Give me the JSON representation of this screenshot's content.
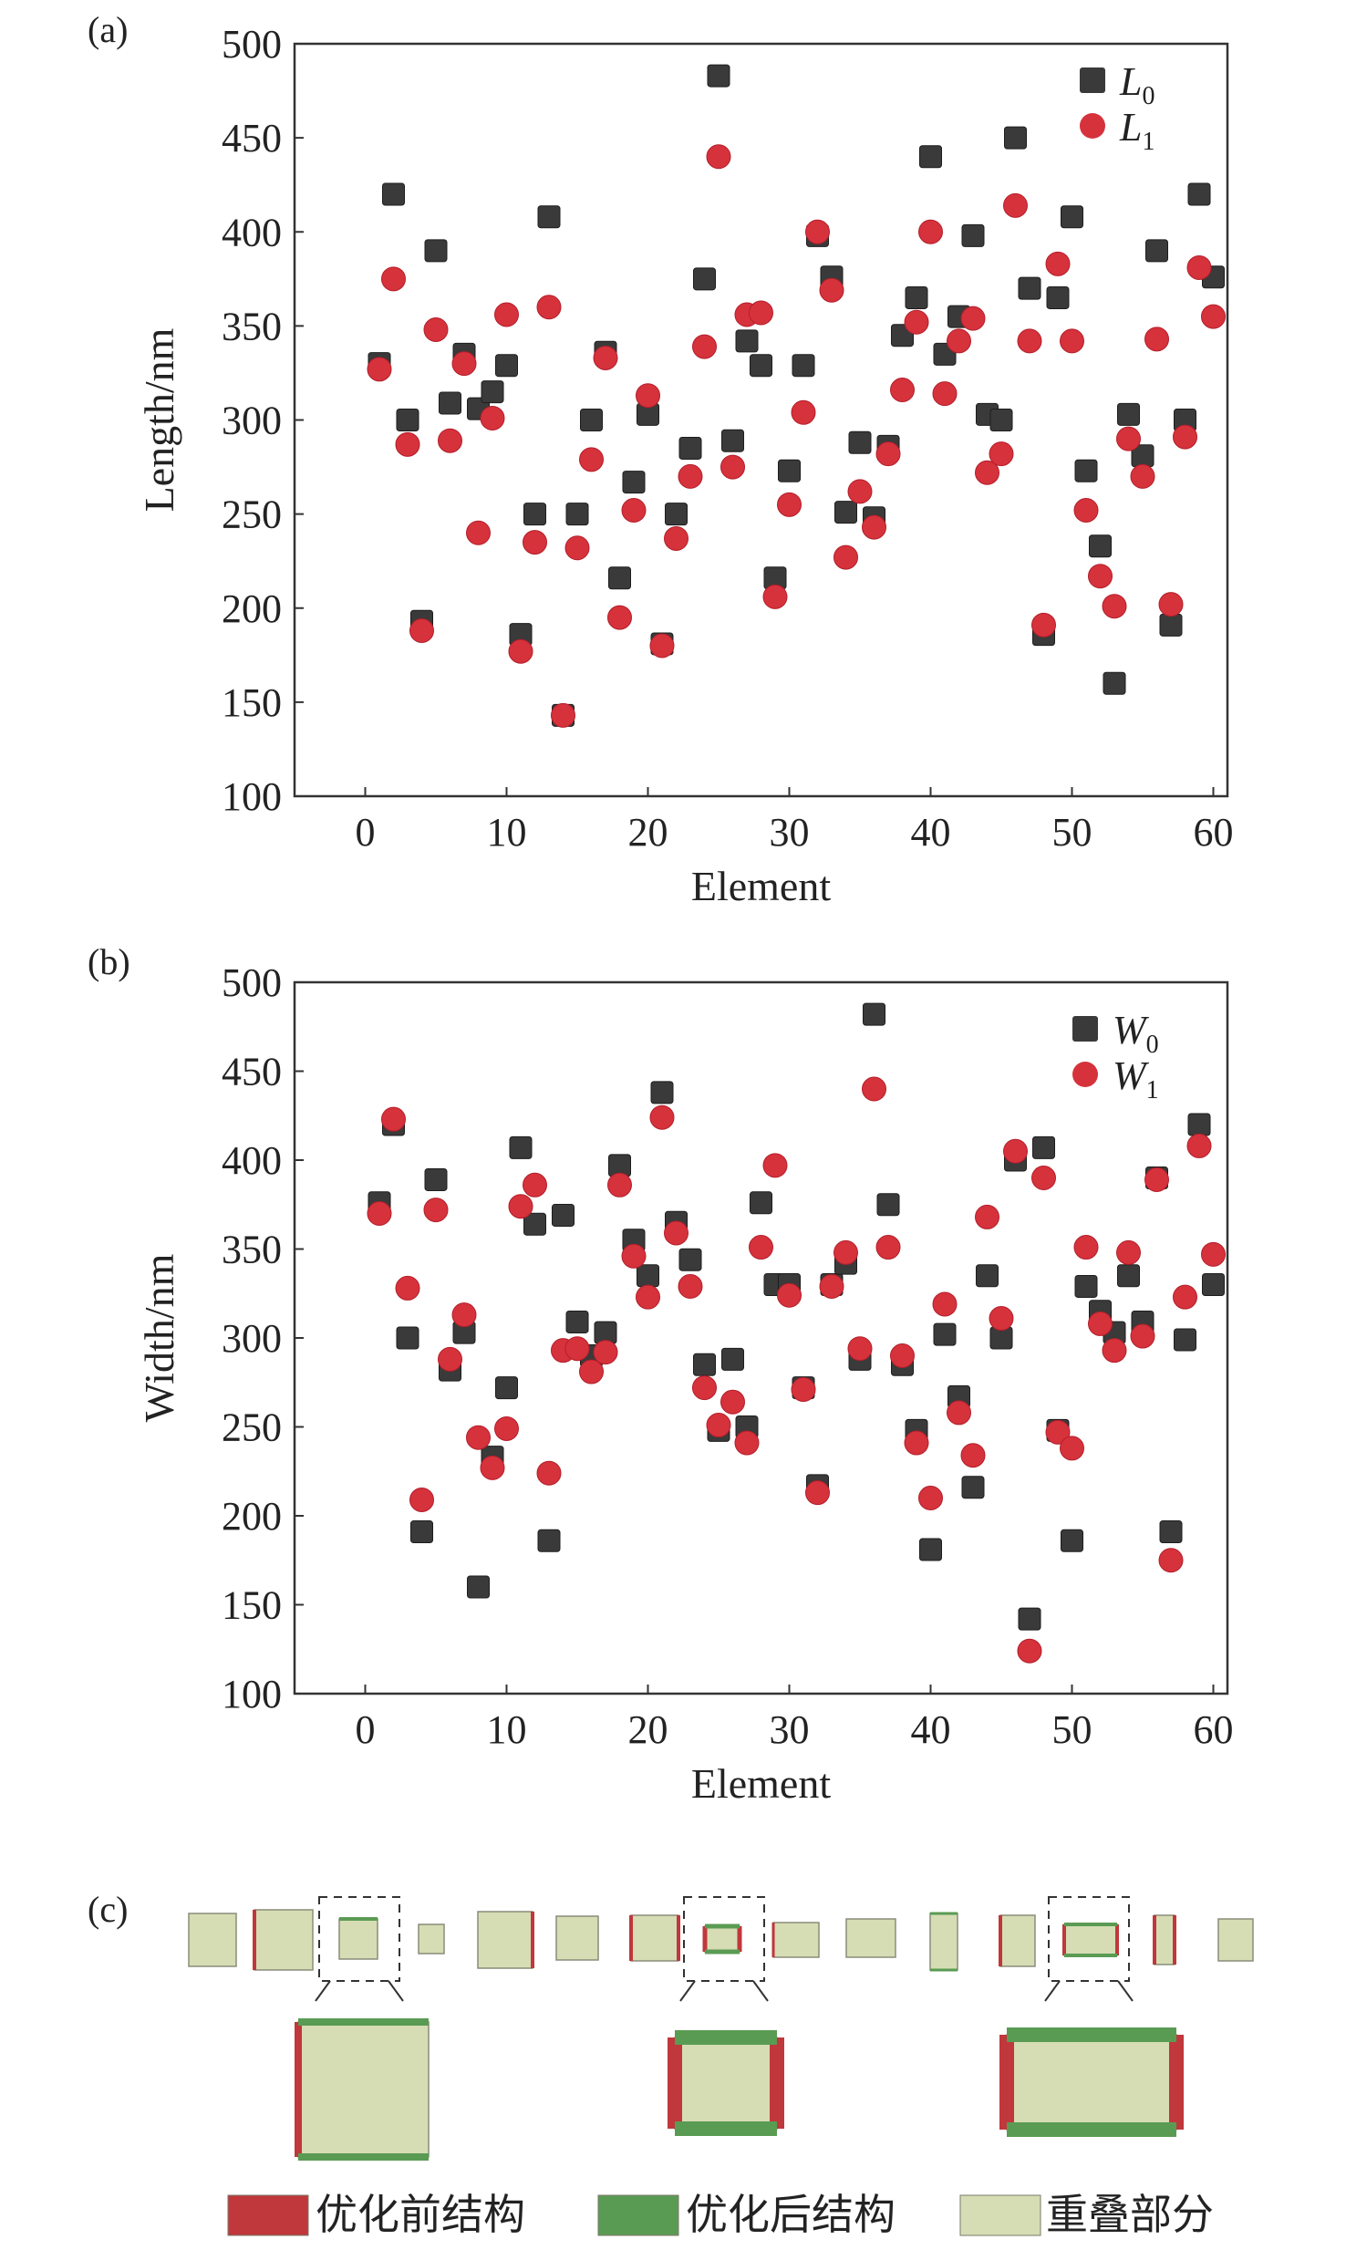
{
  "chart_data": [
    {
      "panel_label": "(a)",
      "type": "scatter",
      "xlabel": "Element",
      "ylabel": "Length/nm",
      "xlim": [
        -5,
        61
      ],
      "ylim": [
        100,
        500
      ],
      "xticks": [
        0,
        10,
        20,
        30,
        40,
        50,
        60
      ],
      "yticks": [
        100,
        150,
        200,
        250,
        300,
        350,
        400,
        450,
        500
      ],
      "grid": false,
      "legend_placement": "top-right",
      "series": [
        {
          "name": "L0",
          "symbol": "L",
          "subscript": "0",
          "marker": "square",
          "color": "#3a3a3a",
          "x": [
            1,
            2,
            3,
            4,
            5,
            6,
            7,
            8,
            9,
            10,
            11,
            12,
            13,
            14,
            15,
            16,
            17,
            18,
            19,
            20,
            21,
            22,
            23,
            24,
            25,
            26,
            27,
            28,
            29,
            30,
            31,
            32,
            33,
            34,
            35,
            36,
            37,
            38,
            39,
            40,
            41,
            42,
            43,
            44,
            45,
            46,
            47,
            48,
            49,
            50,
            51,
            52,
            53,
            54,
            55,
            56,
            57,
            58,
            59,
            60
          ],
          "y": [
            330,
            420,
            300,
            193,
            390,
            309,
            335,
            306,
            315,
            329,
            186,
            250,
            408,
            143,
            250,
            300,
            336,
            216,
            267,
            303,
            181,
            250,
            285,
            375,
            483,
            289,
            342,
            329,
            216,
            273,
            329,
            398,
            376,
            251,
            288,
            248,
            286,
            345,
            365,
            440,
            335,
            355,
            398,
            303,
            300,
            450,
            370,
            186,
            365,
            408,
            273,
            233,
            160,
            303,
            281,
            390,
            191,
            300,
            420,
            376
          ]
        },
        {
          "name": "L1",
          "symbol": "L",
          "subscript": "1",
          "marker": "circle",
          "color": "#d6323c",
          "x": [
            1,
            2,
            3,
            4,
            5,
            6,
            7,
            8,
            9,
            10,
            11,
            12,
            13,
            14,
            15,
            16,
            17,
            18,
            19,
            20,
            21,
            22,
            23,
            24,
            25,
            26,
            27,
            28,
            29,
            30,
            31,
            32,
            33,
            34,
            35,
            36,
            37,
            38,
            39,
            40,
            41,
            42,
            43,
            44,
            45,
            46,
            47,
            48,
            49,
            50,
            51,
            52,
            53,
            54,
            55,
            56,
            57,
            58,
            59,
            60
          ],
          "y": [
            327,
            375,
            287,
            188,
            348,
            289,
            330,
            240,
            301,
            356,
            177,
            235,
            360,
            143,
            232,
            279,
            333,
            195,
            252,
            313,
            180,
            237,
            270,
            339,
            440,
            275,
            356,
            357,
            206,
            255,
            304,
            400,
            369,
            227,
            262,
            243,
            282,
            316,
            352,
            400,
            314,
            342,
            354,
            272,
            282,
            414,
            342,
            191,
            383,
            342,
            252,
            217,
            201,
            290,
            270,
            343,
            202,
            291,
            381,
            355
          ]
        }
      ]
    },
    {
      "panel_label": "(b)",
      "type": "scatter",
      "xlabel": "Element",
      "ylabel": "Width/nm",
      "xlim": [
        -5,
        61
      ],
      "ylim": [
        100,
        500
      ],
      "xticks": [
        0,
        10,
        20,
        30,
        40,
        50,
        60
      ],
      "yticks": [
        100,
        150,
        200,
        250,
        300,
        350,
        400,
        450,
        500
      ],
      "grid": false,
      "legend_placement": "top-right",
      "series": [
        {
          "name": "W0",
          "symbol": "W",
          "subscript": "0",
          "marker": "square",
          "color": "#3a3a3a",
          "x": [
            1,
            2,
            3,
            4,
            5,
            6,
            7,
            8,
            9,
            10,
            11,
            12,
            13,
            14,
            15,
            16,
            17,
            18,
            19,
            20,
            21,
            22,
            23,
            24,
            25,
            26,
            27,
            28,
            29,
            30,
            31,
            32,
            33,
            34,
            35,
            36,
            37,
            38,
            39,
            40,
            41,
            42,
            43,
            44,
            45,
            46,
            47,
            48,
            49,
            50,
            51,
            52,
            53,
            54,
            55,
            56,
            57,
            58,
            59,
            60
          ],
          "y": [
            376,
            420,
            300,
            191,
            389,
            282,
            303,
            160,
            233,
            272,
            407,
            364,
            186,
            369,
            309,
            290,
            303,
            397,
            355,
            335,
            438,
            365,
            344,
            285,
            248,
            288,
            250,
            376,
            330,
            330,
            272,
            217,
            330,
            342,
            288,
            482,
            375,
            285,
            248,
            181,
            302,
            267,
            216,
            335,
            300,
            400,
            142,
            407,
            248,
            186,
            329,
            315,
            303,
            335,
            309,
            390,
            191,
            299,
            420,
            330
          ]
        },
        {
          "name": "W1",
          "symbol": "W",
          "subscript": "1",
          "marker": "circle",
          "color": "#d6323c",
          "x": [
            1,
            2,
            3,
            4,
            5,
            6,
            7,
            8,
            9,
            10,
            11,
            12,
            13,
            14,
            15,
            16,
            17,
            18,
            19,
            20,
            21,
            22,
            23,
            24,
            25,
            26,
            27,
            28,
            29,
            30,
            31,
            32,
            33,
            34,
            35,
            36,
            37,
            38,
            39,
            40,
            41,
            42,
            43,
            44,
            45,
            46,
            47,
            48,
            49,
            50,
            51,
            52,
            53,
            54,
            55,
            56,
            57,
            58,
            59,
            60
          ],
          "y": [
            370,
            423,
            328,
            209,
            372,
            288,
            313,
            244,
            227,
            249,
            374,
            386,
            224,
            293,
            294,
            281,
            292,
            386,
            346,
            323,
            424,
            359,
            329,
            272,
            251,
            264,
            241,
            351,
            397,
            324,
            271,
            213,
            329,
            348,
            294,
            440,
            351,
            290,
            241,
            210,
            319,
            258,
            234,
            368,
            311,
            405,
            124,
            390,
            247,
            238,
            351,
            308,
            293,
            348,
            301,
            389,
            175,
            323,
            408,
            347
          ]
        }
      ]
    }
  ],
  "panel_c": {
    "label": "(c)",
    "legend": [
      {
        "key": "before",
        "color": "#c0373c",
        "text": "优化前结构"
      },
      {
        "key": "after",
        "color": "#5a9b53",
        "text": "优化后结构"
      },
      {
        "key": "overlap",
        "color": "#d6ddb4",
        "text": "重叠部分"
      }
    ]
  }
}
